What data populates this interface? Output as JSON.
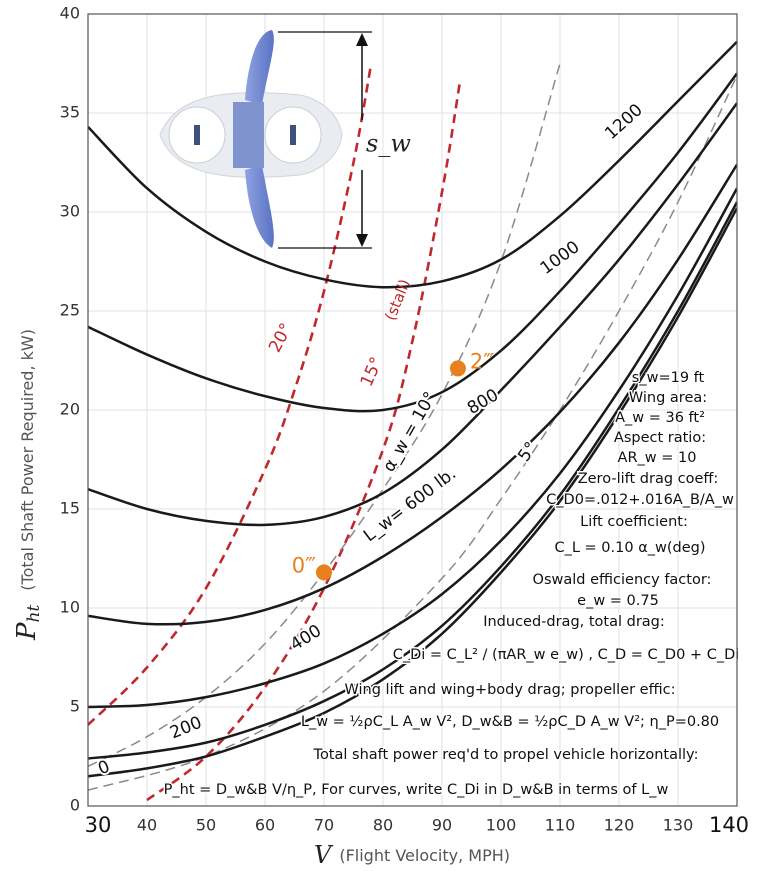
{
  "chart_data": {
    "type": "line",
    "ylabel": {
      "symbol": "P",
      "subscript": "ht",
      "text": "(Total Shaft Power Required, kW)"
    },
    "xlabel": {
      "symbol": "V",
      "text": "(Flight Velocity, MPH)"
    },
    "xlim": [
      30,
      140
    ],
    "xticks": [
      30,
      40,
      50,
      60,
      70,
      80,
      90,
      100,
      110,
      120,
      130,
      140
    ],
    "ylim": [
      0,
      40
    ],
    "yticks": [
      0,
      5,
      10,
      15,
      20,
      25,
      30,
      35,
      40
    ],
    "grid": true,
    "x": [
      30,
      40,
      50,
      60,
      70,
      80,
      90,
      100,
      110,
      120,
      130,
      140
    ],
    "series": [
      {
        "name": "0",
        "color": "#1a1a1a",
        "values": [
          1.5,
          1.9,
          2.5,
          3.5,
          4.7,
          6.4,
          8.7,
          11.8,
          15.4,
          19.8,
          24.7,
          30.2
        ]
      },
      {
        "name": "200",
        "color": "#1a1a1a",
        "values": [
          2.4,
          2.7,
          3.2,
          4.1,
          5.3,
          6.9,
          9.1,
          12.1,
          15.7,
          20.1,
          25.0,
          30.5
        ]
      },
      {
        "name": "400",
        "color": "#1a1a1a",
        "values": [
          5.0,
          5.1,
          5.5,
          6.2,
          7.2,
          8.7,
          10.7,
          13.4,
          16.8,
          21.0,
          25.8,
          31.2
        ]
      },
      {
        "name": "L_w= 600 lb.",
        "color": "#1a1a1a",
        "values": [
          9.6,
          9.2,
          9.3,
          9.9,
          11.0,
          12.6,
          14.6,
          17.0,
          19.9,
          23.4,
          27.6,
          32.4
        ]
      },
      {
        "name": "800",
        "color": "#1a1a1a",
        "values": [
          16.0,
          15.0,
          14.4,
          14.2,
          14.6,
          15.8,
          18.0,
          21.0,
          24.2,
          27.6,
          31.4,
          35.5
        ]
      },
      {
        "name": "1000",
        "color": "#1a1a1a",
        "values": [
          24.2,
          22.8,
          21.6,
          20.7,
          20.1,
          20.0,
          20.9,
          23.0,
          26.0,
          29.4,
          33.0,
          37.0
        ]
      },
      {
        "name": "1200",
        "color": "#1a1a1a",
        "values": [
          34.3,
          31.2,
          29.0,
          27.5,
          26.6,
          26.2,
          26.5,
          27.6,
          29.8,
          32.6,
          35.6,
          38.6
        ]
      }
    ],
    "angle_lines": [
      {
        "name": "20°",
        "color": "#c0282d",
        "x": [
          30,
          40,
          50,
          60,
          65,
          70,
          75,
          78
        ],
        "values": [
          4.1,
          7.0,
          11.0,
          17.0,
          21.0,
          26.0,
          32.5,
          37.5
        ]
      },
      {
        "name": "15°",
        "note": "(stall)",
        "color": "#c0282d",
        "x": [
          40,
          50,
          60,
          70,
          80,
          85,
          90,
          93
        ],
        "values": [
          0.3,
          2.5,
          6.0,
          11.0,
          18.0,
          23.5,
          31.0,
          36.5
        ]
      },
      {
        "name": "α_w = 10°",
        "color": "#8a8a8a",
        "x": [
          30,
          40,
          50,
          60,
          70,
          80,
          90,
          100,
          110
        ],
        "values": [
          2.0,
          3.5,
          5.5,
          8.2,
          11.8,
          16.0,
          20.8,
          27.5,
          37.5
        ]
      },
      {
        "name": "5°",
        "color": "#8a8a8a",
        "x": [
          30,
          50,
          70,
          90,
          100,
          110,
          120,
          130,
          140
        ],
        "values": [
          0.8,
          2.5,
          5.8,
          11.5,
          15.5,
          20.0,
          25.0,
          30.5,
          36.9
        ]
      }
    ],
    "points": [
      {
        "label": "0‴",
        "x": 70,
        "y": 11.8,
        "color": "#e8801e"
      },
      {
        "label": "2‴",
        "x": 92.7,
        "y": 22.1,
        "color": "#e8801e"
      }
    ],
    "inset_label": "s_w",
    "annotations": [
      "s_w=19 ft",
      "Wing area:",
      "A_w = 36 ft²",
      "Aspect ratio:",
      "AR_w = 10",
      "Zero-lift drag coeff:",
      "C_D0=.012+.016A_B/A_w",
      "Lift coefficient:",
      "C_L = 0.10 α_w(deg)",
      "Oswald efficiency factor:",
      "e_w = 0.75",
      "Induced-drag,  total drag:",
      "C_Di = C_L² / (πAR_w e_w) ,  C_D = C_D0 + C_Di",
      "Wing lift and wing+body drag;  propeller effic:",
      "L_w = ½ρC_L A_w V²,  D_w&B = ½ρC_D A_w V²;  η_P=0.80",
      "Total shaft power req'd to propel vehicle horizontally:",
      "P_ht = D_w&B V/η_P, For curves, write  C_Di in D_w&B in terms of L_w"
    ]
  }
}
